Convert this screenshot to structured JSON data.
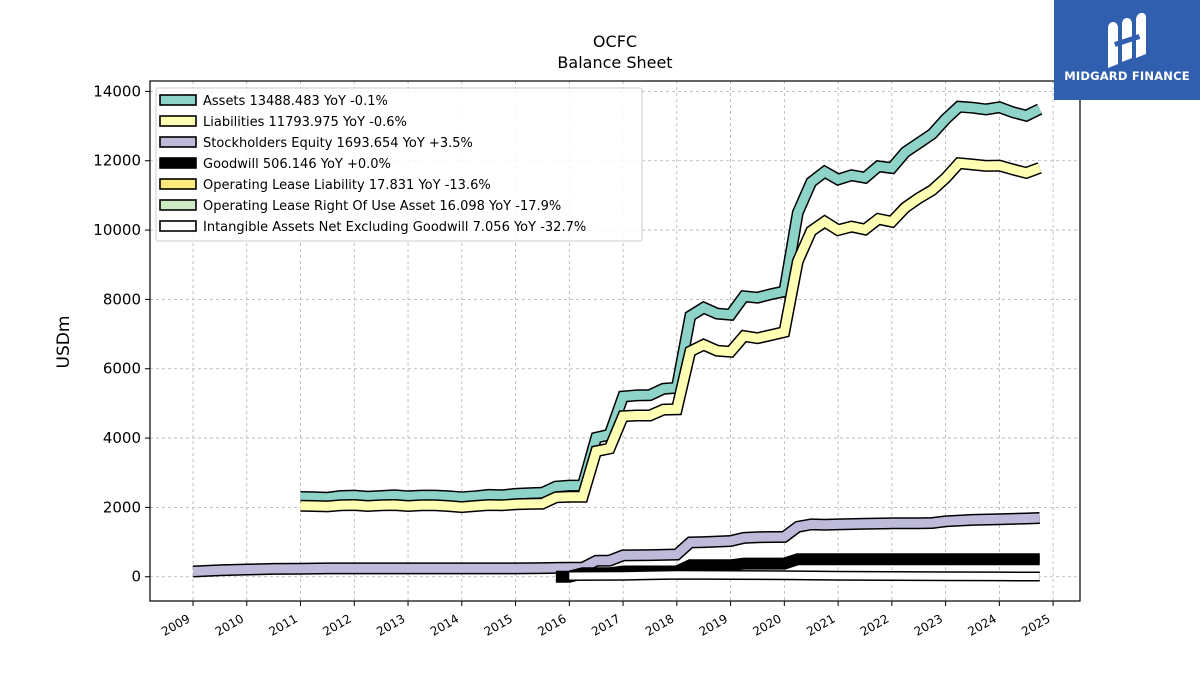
{
  "brand": {
    "name": "MIDGARD FINANCE",
    "color": "#2f5fae"
  },
  "chart_data": {
    "type": "line",
    "title": "OCFC",
    "subtitle": "Balance  Sheet",
    "xlabel": "",
    "ylabel": "USDm",
    "xlim": [
      2008.2,
      2025.5
    ],
    "ylim": [
      -700,
      14300
    ],
    "x_ticks": [
      "2009",
      "2010",
      "2011",
      "2012",
      "2013",
      "2014",
      "2015",
      "2016",
      "2017",
      "2018",
      "2019",
      "2020",
      "2021",
      "2022",
      "2023",
      "2024",
      "2025"
    ],
    "y_ticks": [
      "0",
      "2000",
      "4000",
      "6000",
      "8000",
      "10000",
      "12000",
      "14000"
    ],
    "grid": true,
    "legend_position": "top-left",
    "series": [
      {
        "name": "Assets",
        "legend": "Assets  13488.483 YoY -0.1%",
        "color": "#8dd3c7",
        "x": [
          2011.0,
          2011.25,
          2011.5,
          2011.75,
          2012.0,
          2012.25,
          2012.5,
          2012.75,
          2013.0,
          2013.25,
          2013.5,
          2013.75,
          2014.0,
          2014.25,
          2014.5,
          2014.75,
          2015.0,
          2015.25,
          2015.5,
          2015.75,
          2016.0,
          2016.25,
          2016.5,
          2016.75,
          2017.0,
          2017.25,
          2017.5,
          2017.75,
          2018.0,
          2018.25,
          2018.5,
          2018.75,
          2019.0,
          2019.25,
          2019.5,
          2019.75,
          2020.0,
          2020.25,
          2020.5,
          2020.75,
          2021.0,
          2021.25,
          2021.5,
          2021.75,
          2022.0,
          2022.25,
          2022.5,
          2022.75,
          2023.0,
          2023.25,
          2023.5,
          2023.75,
          2024.0,
          2024.25,
          2024.5,
          2024.75
        ],
        "values": [
          2300,
          2290,
          2280,
          2330,
          2340,
          2310,
          2330,
          2350,
          2320,
          2340,
          2340,
          2320,
          2290,
          2320,
          2360,
          2350,
          2390,
          2410,
          2420,
          2600,
          2630,
          2630,
          4010,
          4100,
          5200,
          5230,
          5240,
          5420,
          5450,
          7520,
          7760,
          7590,
          7560,
          8090,
          8050,
          8150,
          8230,
          10500,
          11380,
          11680,
          11460,
          11580,
          11510,
          11840,
          11790,
          12250,
          12510,
          12770,
          13200,
          13560,
          13530,
          13480,
          13540,
          13400,
          13300,
          13488
        ]
      },
      {
        "name": "Liabilities",
        "legend": "Liabilities  11793.975 YoY -0.6%",
        "color": "#ffffb3",
        "x": [
          2011.0,
          2011.25,
          2011.5,
          2011.75,
          2012.0,
          2012.25,
          2012.5,
          2012.75,
          2013.0,
          2013.25,
          2013.5,
          2013.75,
          2014.0,
          2014.25,
          2014.5,
          2014.75,
          2015.0,
          2015.25,
          2015.5,
          2015.75,
          2016.0,
          2016.25,
          2016.5,
          2016.75,
          2017.0,
          2017.25,
          2017.5,
          2017.75,
          2018.0,
          2018.25,
          2018.5,
          2018.75,
          2019.0,
          2019.25,
          2019.5,
          2019.75,
          2020.0,
          2020.25,
          2020.5,
          2020.75,
          2021.0,
          2021.25,
          2021.5,
          2021.75,
          2022.0,
          2022.25,
          2022.5,
          2022.75,
          2023.0,
          2023.25,
          2023.5,
          2023.75,
          2024.0,
          2024.25,
          2024.5,
          2024.75
        ],
        "values": [
          2050,
          2040,
          2030,
          2060,
          2070,
          2040,
          2060,
          2070,
          2040,
          2060,
          2060,
          2040,
          2010,
          2040,
          2070,
          2060,
          2090,
          2100,
          2110,
          2290,
          2310,
          2310,
          3620,
          3700,
          4630,
          4650,
          4650,
          4820,
          4830,
          6500,
          6690,
          6520,
          6490,
          6940,
          6880,
          6970,
          7060,
          9100,
          9970,
          10240,
          10000,
          10100,
          10020,
          10320,
          10240,
          10650,
          10920,
          11150,
          11500,
          11930,
          11890,
          11850,
          11860,
          11750,
          11650,
          11794
        ]
      },
      {
        "name": "Stockholders Equity",
        "legend": "Stockholders Equity  1693.654 YoY +3.5%",
        "color": "#bebada",
        "x": [
          2009.0,
          2009.5,
          2010.0,
          2010.5,
          2011.0,
          2011.5,
          2012.0,
          2012.5,
          2013.0,
          2013.5,
          2014.0,
          2014.5,
          2015.0,
          2015.5,
          2015.75,
          2016.0,
          2016.25,
          2016.5,
          2016.75,
          2017.0,
          2017.5,
          2018.0,
          2018.25,
          2018.5,
          2019.0,
          2019.25,
          2019.5,
          2020.0,
          2020.25,
          2020.5,
          2020.75,
          2021.0,
          2021.5,
          2022.0,
          2022.5,
          2022.75,
          2023.0,
          2023.5,
          2024.0,
          2024.5,
          2024.75
        ],
        "values": [
          150,
          185,
          210,
          225,
          230,
          240,
          240,
          240,
          240,
          240,
          240,
          240,
          240,
          250,
          255,
          262,
          262,
          460,
          465,
          615,
          625,
          640,
          990,
          1000,
          1030,
          1120,
          1140,
          1150,
          1440,
          1510,
          1500,
          1510,
          1530,
          1540,
          1545,
          1550,
          1600,
          1640,
          1660,
          1680,
          1694
        ]
      },
      {
        "name": "Goodwill",
        "legend": "Goodwill  506.146 YoY +0.0%",
        "color": "#000000",
        "x": [
          2015.75,
          2016.0,
          2016.25,
          2016.5,
          2016.75,
          2017.0,
          2017.5,
          2018.0,
          2018.25,
          2019.0,
          2019.25,
          2020.0,
          2020.25,
          2021.0,
          2022.0,
          2023.0,
          2024.0,
          2024.75
        ],
        "values": [
          0,
          0,
          100,
          100,
          100,
          150,
          150,
          150,
          330,
          330,
          380,
          380,
          506,
          506,
          506,
          506,
          506,
          506
        ]
      },
      {
        "name": "Operating Lease Liability",
        "legend": "Operating Lease Liability  17.831 YoY -13.6%",
        "color": "#fdea7a",
        "x": [
          2019.0,
          2020.0,
          2021.0,
          2022.0,
          2023.0,
          2024.0,
          2024.75
        ],
        "values": [
          35,
          32,
          28,
          25,
          22,
          20,
          18
        ]
      },
      {
        "name": "Operating Lease Right Of Use Asset",
        "legend": "Operating Lease Right Of Use Asset  16.098 YoY -17.9%",
        "color": "#ccebc5",
        "x": [
          2019.0,
          2020.0,
          2021.0,
          2022.0,
          2023.0,
          2024.0,
          2024.75
        ],
        "values": [
          33,
          30,
          26,
          23,
          20,
          18,
          16
        ]
      },
      {
        "name": "Intangible Assets Net Excluding Goodwill",
        "legend": "Intangible Assets Net Excluding Goodwill  7.056 YoY -32.7%",
        "color": "#ffffff",
        "x": [
          2016.0,
          2016.5,
          2017.0,
          2018.0,
          2019.0,
          2020.0,
          2021.0,
          2022.0,
          2023.0,
          2024.0,
          2024.75
        ],
        "values": [
          20,
          25,
          30,
          60,
          50,
          40,
          30,
          20,
          15,
          10,
          7
        ]
      }
    ]
  }
}
